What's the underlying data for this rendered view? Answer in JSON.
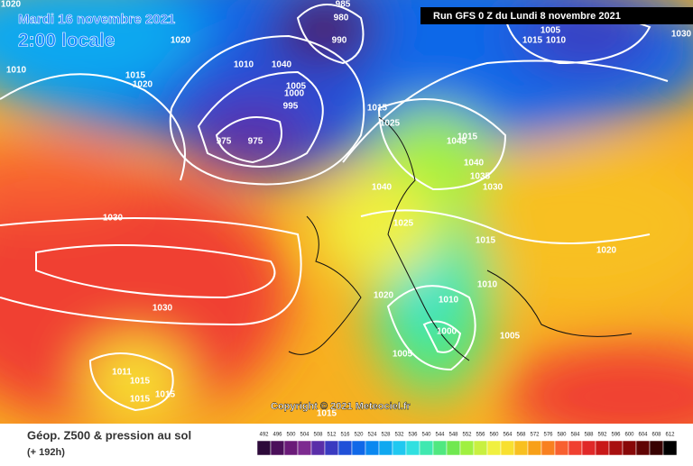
{
  "header": {
    "date": "Mardi 16 novembre 2021",
    "time": "2:00 locale",
    "run": "Run GFS 0 Z du Lundi 8 novembre 2021"
  },
  "copyright": "Copyright © 2021 Meteociel.fr",
  "footer": {
    "title": "Géop. Z500 & pression au sol",
    "subtitle": "(+ 192h)"
  },
  "legend": {
    "labels": [
      492,
      496,
      500,
      504,
      508,
      512,
      516,
      520,
      524,
      528,
      532,
      536,
      540,
      544,
      548,
      552,
      556,
      560,
      564,
      568,
      572,
      576,
      580,
      584,
      588,
      592,
      596,
      600,
      604,
      608,
      612
    ],
    "colors": [
      "#2d0a3a",
      "#4b0f5a",
      "#6a1a78",
      "#7d2a90",
      "#5a2ea8",
      "#3a3ac0",
      "#2050d8",
      "#1068e8",
      "#0a88f0",
      "#10a8f0",
      "#20c8f0",
      "#30e0e0",
      "#40e8b0",
      "#50e880",
      "#70e850",
      "#a0f040",
      "#c8f040",
      "#f0f040",
      "#f8e030",
      "#f8c020",
      "#f8a018",
      "#f88020",
      "#f86030",
      "#f04030",
      "#e02828",
      "#c81818",
      "#a81010",
      "#880808",
      "#600404",
      "#380202",
      "#000000"
    ]
  },
  "isobar_labels": [
    "1020",
    "1010",
    "1020",
    "1015",
    "1020",
    "985",
    "980",
    "990",
    "1010",
    "1040",
    "1005",
    "1000",
    "995",
    "975",
    "975",
    "1030",
    "1030",
    "1011",
    "1015",
    "1015",
    "1015",
    "1040",
    "1045",
    "1040",
    "1035",
    "1030",
    "1025",
    "1015",
    "1020",
    "1020",
    "1010",
    "1010",
    "1000",
    "1005",
    "1005",
    "1015",
    "1005",
    "1015",
    "1010",
    "1030",
    "1015",
    "1025",
    "1015"
  ]
}
